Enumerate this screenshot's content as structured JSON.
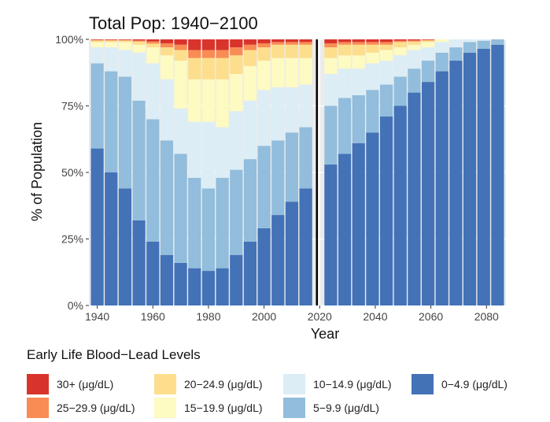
{
  "chart_data": {
    "type": "bar",
    "stacked": true,
    "normalized": true,
    "title": "Total Pop: 1940−2100",
    "xlabel": "Year",
    "ylabel": "% of Population",
    "ylim": [
      0,
      100
    ],
    "xlim": [
      1937,
      2087
    ],
    "grid": true,
    "divider_year": 2019,
    "x_ticks": [
      1940,
      1960,
      1980,
      2000,
      2020,
      2040,
      2060,
      2080
    ],
    "y_ticks": [
      0,
      25,
      50,
      75,
      100
    ],
    "y_tick_labels": [
      "0%",
      "25%",
      "50%",
      "75%",
      "100%"
    ],
    "legend": {
      "title": "Early Life Blood−Lead Levels",
      "position": "bottom"
    },
    "series": [
      {
        "name": "0−4.9 (μg/dL)",
        "color": "#4372b7"
      },
      {
        "name": "5−9.9 (μg/dL)",
        "color": "#92bddc"
      },
      {
        "name": "10−14.9 (μg/dL)",
        "color": "#dcedf6"
      },
      {
        "name": "15−19.9 (μg/dL)",
        "color": "#fdfac2"
      },
      {
        "name": "20−24.9 (μg/dL)",
        "color": "#fdde8d"
      },
      {
        "name": "25−29.9 (μg/dL)",
        "color": "#f98c54"
      },
      {
        "name": "30+ (μg/dL)",
        "color": "#d9342b"
      }
    ],
    "legend_order": [
      6,
      5,
      4,
      3,
      2,
      1,
      0
    ],
    "bars": [
      {
        "year": 1940,
        "values": [
          59,
          32,
          6,
          2,
          0.6,
          0.2,
          0.2
        ]
      },
      {
        "year": 1945,
        "values": [
          50,
          38,
          9,
          2,
          0.6,
          0.2,
          0.2
        ]
      },
      {
        "year": 1950,
        "values": [
          44,
          42,
          10,
          3,
          0.6,
          0.2,
          0.2
        ]
      },
      {
        "year": 1955,
        "values": [
          32,
          45,
          18,
          3,
          1.2,
          0.4,
          0.4
        ]
      },
      {
        "year": 1960,
        "values": [
          24,
          46,
          21,
          6,
          1.4,
          0.8,
          0.8
        ]
      },
      {
        "year": 1965,
        "values": [
          19,
          43,
          23,
          9,
          3,
          1.5,
          1.5
        ]
      },
      {
        "year": 1970,
        "values": [
          16,
          41,
          17,
          18,
          4,
          2,
          2
        ]
      },
      {
        "year": 1975,
        "values": [
          14,
          34,
          21,
          16,
          8,
          3,
          4
        ]
      },
      {
        "year": 1980,
        "values": [
          13,
          31,
          25,
          16,
          8,
          3,
          4
        ]
      },
      {
        "year": 1985,
        "values": [
          14,
          34,
          19,
          18,
          8,
          3,
          4
        ]
      },
      {
        "year": 1990,
        "values": [
          19,
          32,
          22,
          14,
          7,
          3,
          3
        ]
      },
      {
        "year": 1995,
        "values": [
          24,
          31,
          22,
          13,
          6,
          2,
          2
        ]
      },
      {
        "year": 2000,
        "values": [
          29,
          31,
          21,
          11,
          5,
          1.5,
          1.5
        ]
      },
      {
        "year": 2005,
        "values": [
          34,
          28,
          20,
          11,
          5,
          1,
          1
        ]
      },
      {
        "year": 2010,
        "values": [
          39,
          26,
          17,
          11,
          5,
          1,
          1
        ]
      },
      {
        "year": 2015,
        "values": [
          44,
          23,
          16,
          10,
          5,
          1,
          1
        ]
      },
      {
        "year": 2024,
        "values": [
          53,
          22,
          12,
          6,
          4,
          1.5,
          1.5
        ]
      },
      {
        "year": 2029,
        "values": [
          57,
          21,
          11,
          5,
          4,
          1,
          1
        ]
      },
      {
        "year": 2034,
        "values": [
          61,
          18,
          10,
          5,
          4,
          1,
          1
        ]
      },
      {
        "year": 2039,
        "values": [
          65,
          16,
          10,
          4,
          3,
          1,
          1
        ]
      },
      {
        "year": 2044,
        "values": [
          71,
          12,
          9,
          4,
          2,
          1,
          1
        ]
      },
      {
        "year": 2049,
        "values": [
          75,
          11,
          8,
          3,
          2,
          0.5,
          0.5
        ]
      },
      {
        "year": 2054,
        "values": [
          80,
          9,
          7,
          2,
          1.2,
          0.4,
          0.4
        ]
      },
      {
        "year": 2059,
        "values": [
          84,
          8,
          5,
          2,
          0.6,
          0.2,
          0.2
        ]
      },
      {
        "year": 2064,
        "values": [
          88,
          7,
          4,
          1,
          0,
          0,
          0
        ]
      },
      {
        "year": 2069,
        "values": [
          92,
          5,
          3,
          0,
          0,
          0,
          0
        ]
      },
      {
        "year": 2074,
        "values": [
          95,
          4,
          1,
          0,
          0,
          0,
          0
        ]
      },
      {
        "year": 2079,
        "values": [
          96.5,
          3,
          0.5,
          0,
          0,
          0,
          0
        ]
      },
      {
        "year": 2084,
        "values": [
          98,
          2,
          0,
          0,
          0,
          0,
          0
        ]
      }
    ]
  }
}
